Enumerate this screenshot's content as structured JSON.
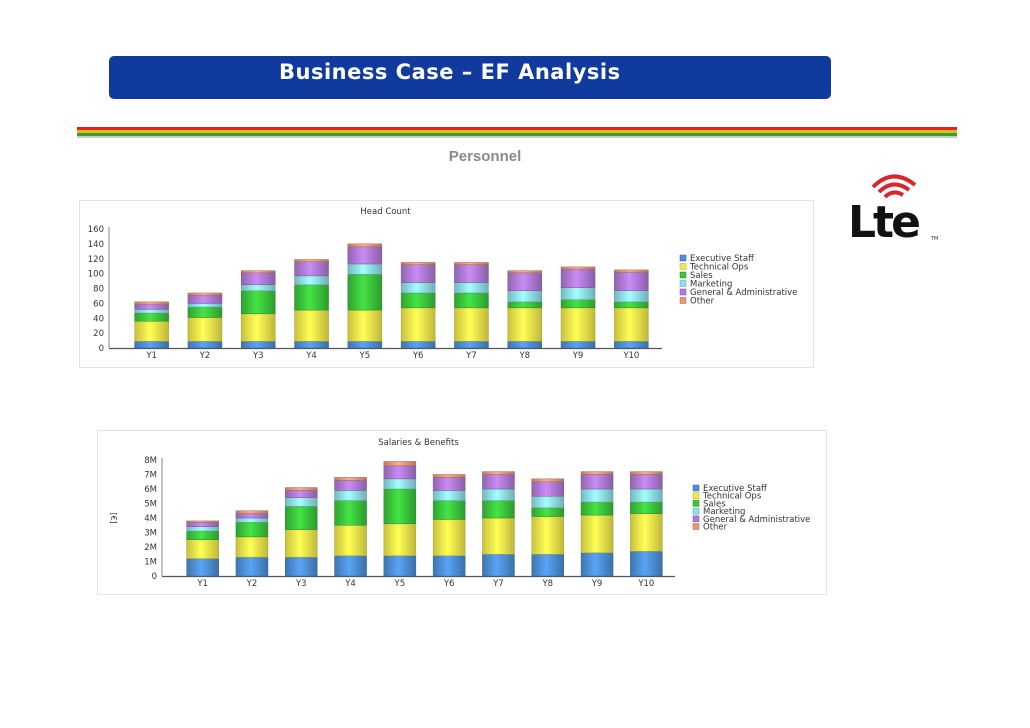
{
  "header": {
    "title": "Business Case – EF Analysis",
    "section_title": "Personnel",
    "colors": {
      "title_bar": "#103a9e",
      "stripes": [
        "#e0261b",
        "#f2b01d",
        "#2ea237",
        "#c9c9c9"
      ]
    }
  },
  "logo": {
    "text": "Lte",
    "trademark": "TM",
    "icon": "lte-logo-icon"
  },
  "chart_data": [
    {
      "type": "bar",
      "stacked": true,
      "title": "Head Count",
      "xlabel": "",
      "ylabel": "",
      "ylim": [
        0,
        160
      ],
      "yticks": [
        "0",
        "20",
        "40",
        "60",
        "80",
        "100",
        "120",
        "140",
        "160"
      ],
      "yticks_values": [
        0,
        20,
        40,
        60,
        80,
        100,
        120,
        140,
        160
      ],
      "categories": [
        "Y1",
        "Y2",
        "Y3",
        "Y4",
        "Y5",
        "Y6",
        "Y7",
        "Y8",
        "Y9",
        "Y10"
      ],
      "grid": false,
      "legend": "right",
      "series": [
        {
          "name": "Executive Staff",
          "color": "#4d8fd6",
          "values": [
            9,
            9,
            9,
            9,
            9,
            9,
            9,
            9,
            9,
            9
          ]
        },
        {
          "name": "Technical Ops",
          "color": "#f4ea4a",
          "values": [
            27,
            32,
            37,
            42,
            42,
            45,
            45,
            45,
            45,
            45
          ]
        },
        {
          "name": "Sales",
          "color": "#3bc63b",
          "values": [
            11,
            14,
            31,
            34,
            48,
            20,
            20,
            8,
            11,
            8
          ]
        },
        {
          "name": "Marketing",
          "color": "#8ee0ea",
          "values": [
            5,
            5,
            8,
            12,
            14,
            14,
            14,
            15,
            16,
            15
          ]
        },
        {
          "name": "General & Administrative",
          "color": "#b07ad6",
          "values": [
            7,
            11,
            16,
            19,
            23,
            24,
            24,
            24,
            25,
            25
          ]
        },
        {
          "name": "Other",
          "color": "#e8977a",
          "values": [
            3,
            3,
            3,
            3,
            4,
            3,
            3,
            3,
            3,
            3
          ]
        }
      ]
    },
    {
      "type": "bar",
      "stacked": true,
      "title": "Salaries & Benefits",
      "xlabel": "",
      "ylabel": "[€]",
      "ylim": [
        0,
        8
      ],
      "yticks": [
        "0",
        "1M",
        "2M",
        "3M",
        "4M",
        "5M",
        "6M",
        "7M",
        "8M"
      ],
      "yticks_values": [
        0,
        1,
        2,
        3,
        4,
        5,
        6,
        7,
        8
      ],
      "categories": [
        "Y1",
        "Y2",
        "Y3",
        "Y4",
        "Y5",
        "Y6",
        "Y7",
        "Y8",
        "Y9",
        "Y10"
      ],
      "grid": false,
      "legend": "right",
      "series": [
        {
          "name": "Executive Staff",
          "color": "#4d8fd6",
          "values": [
            1.2,
            1.3,
            1.3,
            1.4,
            1.4,
            1.4,
            1.5,
            1.5,
            1.6,
            1.7
          ]
        },
        {
          "name": "Technical Ops",
          "color": "#f4ea4a",
          "values": [
            1.3,
            1.4,
            1.9,
            2.1,
            2.2,
            2.5,
            2.5,
            2.6,
            2.6,
            2.6
          ]
        },
        {
          "name": "Sales",
          "color": "#3bc63b",
          "values": [
            0.6,
            1.0,
            1.6,
            1.7,
            2.4,
            1.3,
            1.2,
            0.6,
            0.9,
            0.8
          ]
        },
        {
          "name": "Marketing",
          "color": "#8ee0ea",
          "values": [
            0.3,
            0.3,
            0.6,
            0.7,
            0.7,
            0.7,
            0.8,
            0.8,
            0.9,
            0.9
          ]
        },
        {
          "name": "General & Administrative",
          "color": "#b07ad6",
          "values": [
            0.3,
            0.3,
            0.5,
            0.7,
            0.9,
            0.9,
            1.0,
            1.0,
            1.0,
            1.0
          ]
        },
        {
          "name": "Other",
          "color": "#e8977a",
          "values": [
            0.1,
            0.2,
            0.2,
            0.2,
            0.3,
            0.2,
            0.2,
            0.2,
            0.2,
            0.2
          ]
        }
      ]
    }
  ]
}
